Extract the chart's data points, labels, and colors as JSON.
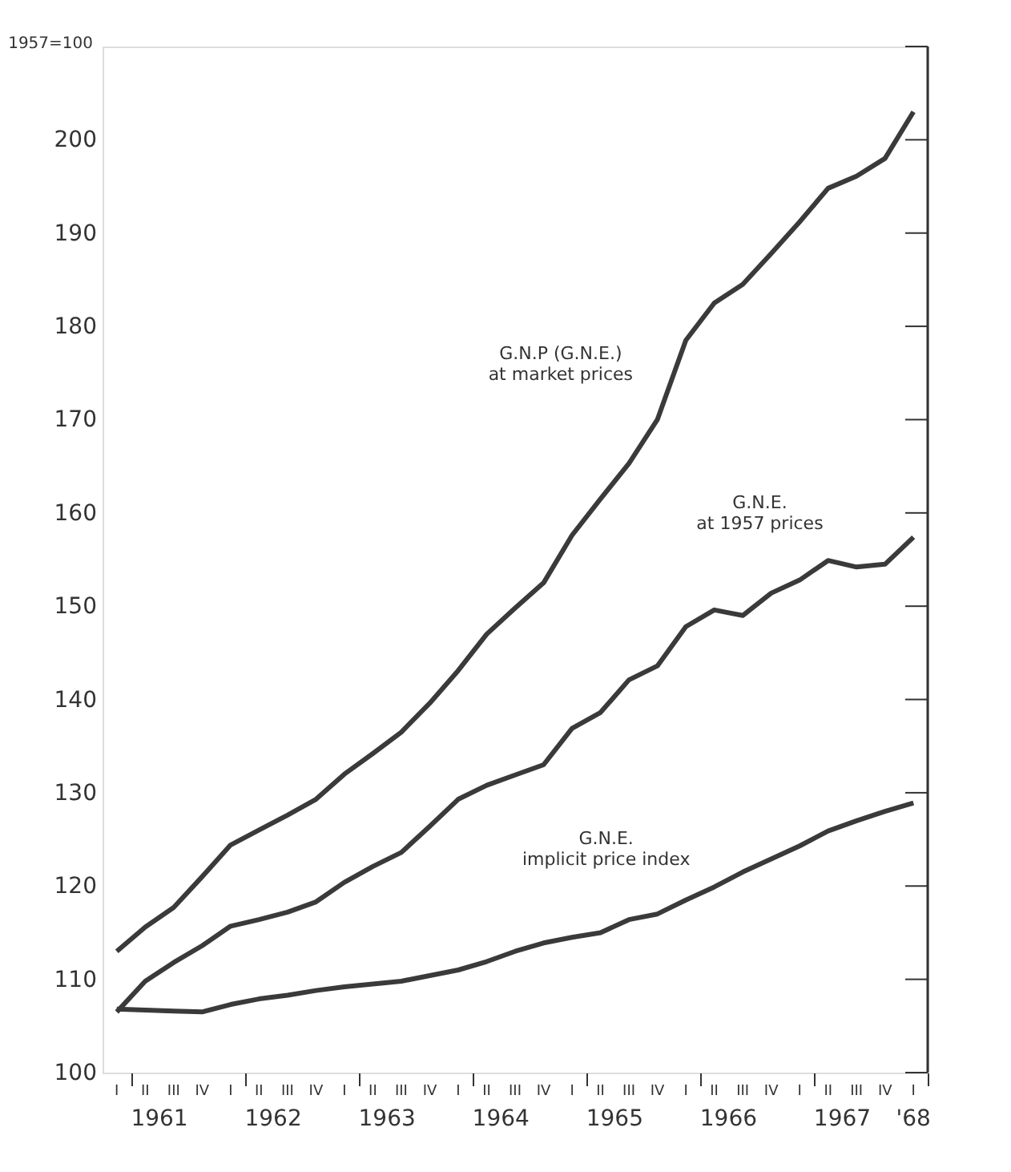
{
  "chart_data": {
    "type": "line",
    "ylabel": "1957=100",
    "categories": [
      "I",
      "II",
      "III",
      "IV",
      "I",
      "II",
      "III",
      "IV",
      "I",
      "II",
      "III",
      "IV",
      "I",
      "II",
      "III",
      "IV",
      "I",
      "II",
      "III",
      "IV",
      "I",
      "II",
      "III",
      "IV",
      "I",
      "II",
      "III",
      "IV",
      "I"
    ],
    "series": [
      {
        "color": "#3a3a3a",
        "values": [
          113.0,
          115.6,
          117.7,
          121.0,
          124.4,
          126.0,
          127.6,
          129.3,
          132.0,
          134.2,
          136.5,
          139.6,
          143.1,
          147.0,
          149.8,
          152.5,
          157.6,
          161.5,
          165.3,
          170.0,
          178.5,
          182.5,
          184.5,
          187.8,
          191.2,
          194.8,
          196.1,
          198.0,
          203.0
        ]
      },
      {
        "color": "#3a3a3a",
        "values": [
          106.5,
          109.8,
          111.8,
          113.6,
          115.7,
          116.4,
          117.2,
          118.3,
          120.4,
          122.1,
          123.6,
          126.4,
          129.3,
          130.8,
          131.9,
          133.0,
          136.9,
          138.6,
          142.1,
          143.6,
          147.8,
          149.6,
          149.0,
          151.4,
          152.8,
          154.9,
          154.2,
          154.5,
          157.4
        ]
      },
      {
        "color": "#3a3a3a",
        "values": [
          106.8,
          106.7,
          106.6,
          106.5,
          107.3,
          107.9,
          108.3,
          108.8,
          109.2,
          109.5,
          109.8,
          110.4,
          111.0,
          111.9,
          113.0,
          113.9,
          114.5,
          115.0,
          116.4,
          117.0,
          118.5,
          119.9,
          121.5,
          122.9,
          124.3,
          125.9,
          127.0,
          128.0,
          128.9
        ]
      }
    ],
    "ylim": [
      100,
      210
    ],
    "yticks": [
      100,
      110,
      120,
      130,
      140,
      150,
      160,
      170,
      180,
      190,
      200,
      {
        "value": 210,
        "label": null
      }
    ],
    "annotations": [
      "1961",
      "1962",
      "1963",
      "1964",
      "1965",
      "1966",
      "1967",
      "'68",
      "G.N.P  (G.N.E.)\nat market prices",
      "G.N.E.\nat 1957 prices",
      "G.N.E.\nimplicit price index"
    ],
    "marker": "none",
    "line_style": "solid"
  }
}
